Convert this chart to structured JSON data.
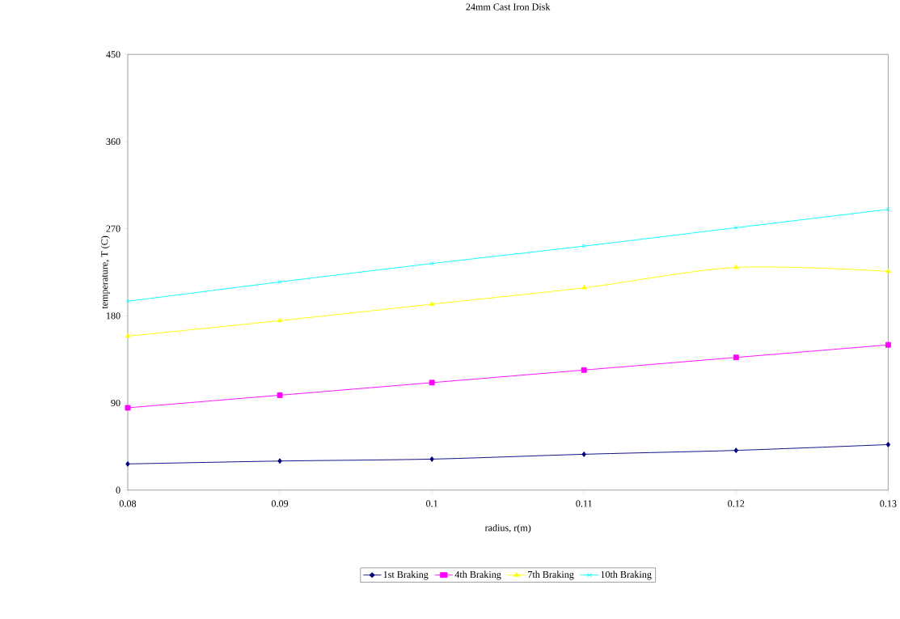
{
  "chart_data": {
    "type": "line",
    "title": "24mm Cast Iron Disk",
    "xlabel": "radius, r(m)",
    "ylabel": "temperature, T (C)",
    "x": [
      0.08,
      0.09,
      0.1,
      0.11,
      0.12,
      0.13
    ],
    "series": [
      {
        "name": "1st Braking",
        "color": "#000080",
        "marker": "diamond",
        "values": [
          27,
          30,
          32,
          37,
          41,
          47
        ]
      },
      {
        "name": "4th Braking",
        "color": "#ff00ff",
        "marker": "square",
        "values": [
          85,
          98,
          111,
          124,
          137,
          150
        ]
      },
      {
        "name": "7th Braking",
        "color": "#ffff00",
        "marker": "triangle",
        "values": [
          159,
          175,
          192,
          209,
          230,
          226
        ]
      },
      {
        "name": "10th Braking",
        "color": "#00ffff",
        "marker": "cross",
        "values": [
          195,
          215,
          234,
          252,
          271,
          290
        ]
      }
    ],
    "xlim": [
      0.08,
      0.13
    ],
    "xticks": [
      0.08,
      0.09,
      0.1,
      0.11,
      0.12,
      0.13
    ],
    "ylim": [
      0,
      450
    ],
    "yticks": [
      0,
      90,
      180,
      270,
      360,
      450
    ],
    "grid": false,
    "legend": "bottom",
    "line_style": "solid"
  }
}
